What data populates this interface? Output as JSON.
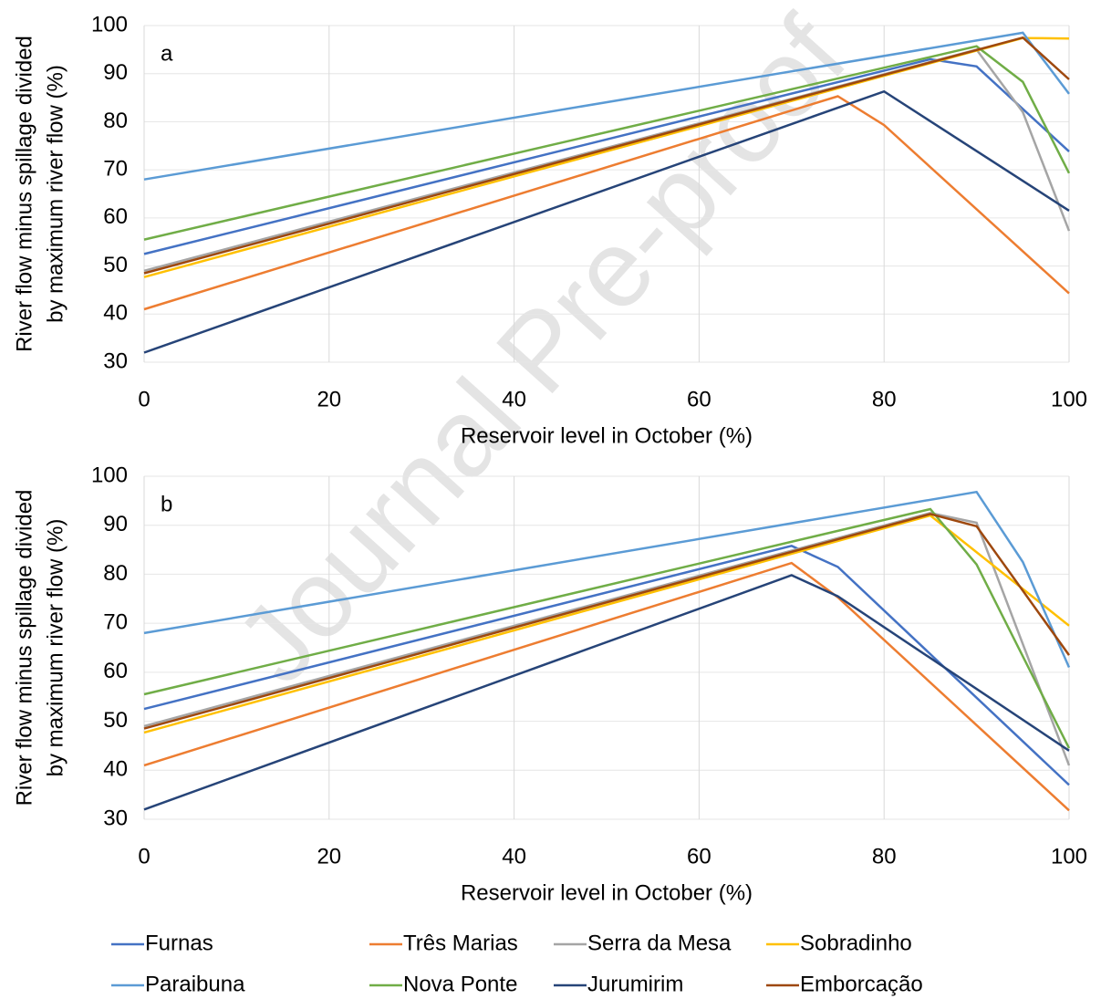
{
  "watermark": "Journal Pre-proof",
  "chart_data": [
    {
      "type": "line",
      "annotation": "a",
      "xlabel": "Reservoir level in October (%)",
      "ylabel": [
        "River flow minus spillage divided",
        "by maximum river flow (%)"
      ],
      "xlim": [
        0,
        100
      ],
      "xticks": [
        0,
        20,
        40,
        60,
        80,
        100
      ],
      "ylim": [
        30,
        100
      ],
      "yticks": [
        30,
        40,
        50,
        60,
        70,
        80,
        90,
        100
      ],
      "grid": true,
      "series": [
        {
          "name": "Furnas",
          "color": "#4472c4",
          "x": [
            0,
            85,
            90,
            100
          ],
          "values": [
            52.5,
            93,
            91.5,
            73.8
          ]
        },
        {
          "name": "Três Marias",
          "color": "#ed7d31",
          "x": [
            0,
            75,
            80,
            100
          ],
          "values": [
            41,
            85.3,
            79.3,
            44.3
          ]
        },
        {
          "name": "Serra da Mesa",
          "color": "#a5a5a5",
          "x": [
            0,
            90,
            95,
            100
          ],
          "values": [
            49,
            95,
            82,
            57.3
          ]
        },
        {
          "name": "Sobradinho",
          "color": "#ffc000",
          "x": [
            0,
            95,
            100
          ],
          "values": [
            47.7,
            97.4,
            97.3
          ]
        },
        {
          "name": "Paraibuna",
          "color": "#5b9bd5",
          "x": [
            0,
            95,
            100
          ],
          "values": [
            68,
            98.5,
            85.8
          ]
        },
        {
          "name": "Nova Ponte",
          "color": "#70ad47",
          "x": [
            0,
            90,
            95,
            100
          ],
          "values": [
            55.5,
            95.7,
            88.3,
            69.3
          ]
        },
        {
          "name": "Jurumirim",
          "color": "#264478",
          "x": [
            0,
            80,
            100
          ],
          "values": [
            32,
            86.3,
            61.5
          ]
        },
        {
          "name": "Emborcação",
          "color": "#9e480e",
          "x": [
            0,
            95,
            100
          ],
          "values": [
            48.5,
            97.5,
            88.8
          ]
        }
      ]
    },
    {
      "type": "line",
      "annotation": "b",
      "xlabel": "Reservoir level in October (%)",
      "ylabel": [
        "River flow minus spillage divided",
        "by maximum river flow (%)"
      ],
      "xlim": [
        0,
        100
      ],
      "xticks": [
        0,
        20,
        40,
        60,
        80,
        100
      ],
      "ylim": [
        30,
        100
      ],
      "yticks": [
        30,
        40,
        50,
        60,
        70,
        80,
        90,
        100
      ],
      "grid": true,
      "series": [
        {
          "name": "Furnas",
          "color": "#4472c4",
          "x": [
            0,
            70,
            75,
            100
          ],
          "values": [
            52.5,
            85.8,
            81.5,
            37
          ]
        },
        {
          "name": "Três Marias",
          "color": "#ed7d31",
          "x": [
            0,
            70,
            75,
            100
          ],
          "values": [
            41,
            82.3,
            75.3,
            31.8
          ]
        },
        {
          "name": "Serra da Mesa",
          "color": "#a5a5a5",
          "x": [
            0,
            85,
            90,
            100
          ],
          "values": [
            49,
            92.5,
            90.5,
            41
          ]
        },
        {
          "name": "Sobradinho",
          "color": "#ffc000",
          "x": [
            0,
            85,
            100
          ],
          "values": [
            47.7,
            92,
            69.5
          ]
        },
        {
          "name": "Paraibuna",
          "color": "#5b9bd5",
          "x": [
            0,
            90,
            95,
            100
          ],
          "values": [
            68,
            96.8,
            82.5,
            61
          ]
        },
        {
          "name": "Nova Ponte",
          "color": "#70ad47",
          "x": [
            0,
            85,
            90,
            100
          ],
          "values": [
            55.5,
            93.3,
            82,
            44.5
          ]
        },
        {
          "name": "Jurumirim",
          "color": "#264478",
          "x": [
            0,
            70,
            75,
            100
          ],
          "values": [
            32,
            79.8,
            75.5,
            44
          ]
        },
        {
          "name": "Emborcação",
          "color": "#9e480e",
          "x": [
            0,
            85,
            90,
            100
          ],
          "values": [
            48.5,
            92.3,
            89.8,
            63.5
          ]
        }
      ]
    }
  ]
}
